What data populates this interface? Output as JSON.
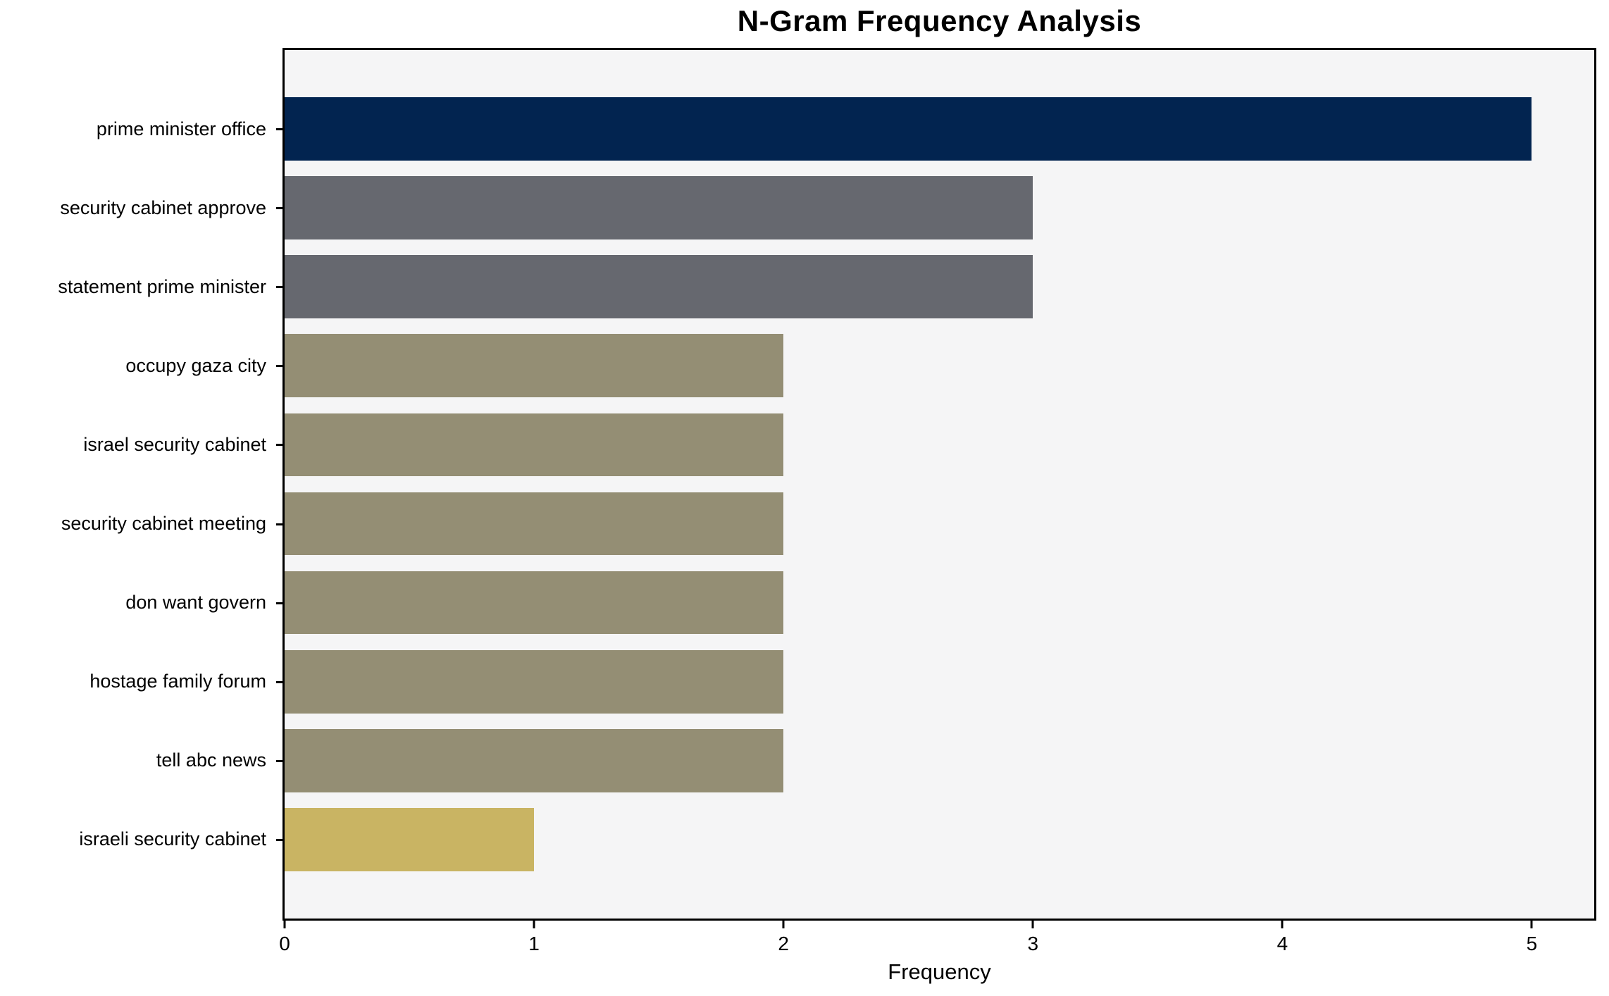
{
  "chart_data": {
    "type": "bar",
    "orientation": "horizontal",
    "title": "N-Gram Frequency Analysis",
    "xlabel": "Frequency",
    "ylabel": "",
    "categories": [
      "prime minister office",
      "security cabinet approve",
      "statement prime minister",
      "occupy gaza city",
      "israel security cabinet",
      "security cabinet meeting",
      "don want govern",
      "hostage family forum",
      "tell abc news",
      "israeli security cabinet"
    ],
    "values": [
      5,
      3,
      3,
      2,
      2,
      2,
      2,
      2,
      2,
      1
    ],
    "bar_colors": [
      "#022450",
      "#66686f",
      "#66686f",
      "#948e74",
      "#948e74",
      "#948e74",
      "#948e74",
      "#948e74",
      "#948e74",
      "#c9b463"
    ],
    "xticks": [
      0,
      1,
      2,
      3,
      4,
      5
    ],
    "xlim": [
      0,
      5.25
    ],
    "grid": false,
    "legend": null,
    "plot_background": "#f5f5f6",
    "outer_background": "#ffffff",
    "spine_color": "#000000"
  }
}
